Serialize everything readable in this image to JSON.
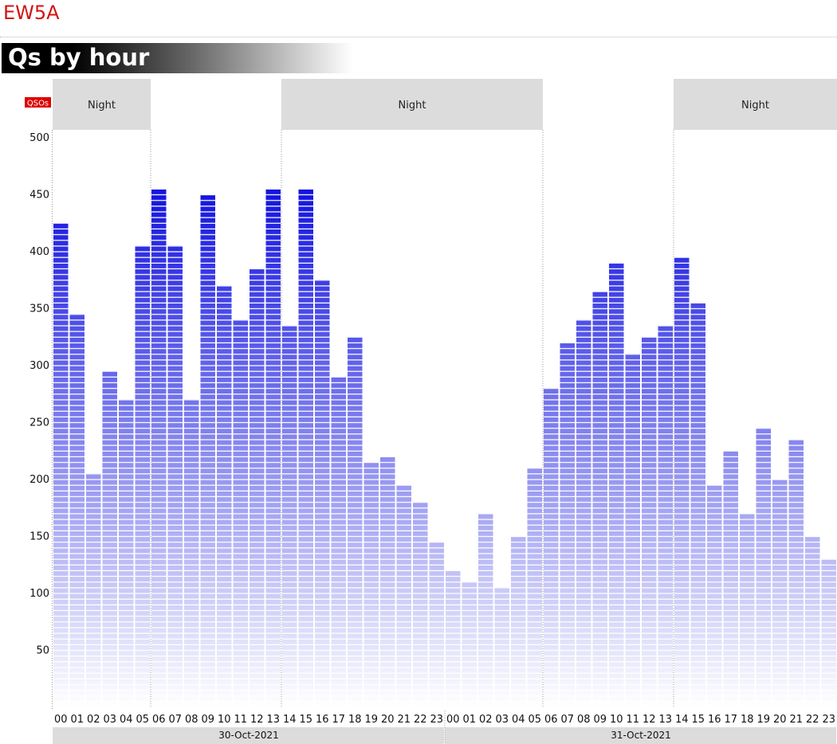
{
  "station": "EW5A",
  "section_title": "Qs by hour",
  "colors": {
    "station": "#d31313",
    "bar_top": "#1010e0",
    "bar_bottom": "#ffffff",
    "night": "#dcdcdc",
    "ylabel_bg": "#dd0000"
  },
  "chart_data": {
    "type": "bar",
    "ylabel": "QSOs",
    "ylim": [
      0,
      500
    ],
    "yticks": [
      50,
      100,
      150,
      200,
      250,
      300,
      350,
      400,
      450,
      500
    ],
    "categories": [
      "00",
      "01",
      "02",
      "03",
      "04",
      "05",
      "06",
      "07",
      "08",
      "09",
      "10",
      "11",
      "12",
      "13",
      "14",
      "15",
      "16",
      "17",
      "18",
      "19",
      "20",
      "21",
      "22",
      "23",
      "00",
      "01",
      "02",
      "03",
      "04",
      "05",
      "06",
      "07",
      "08",
      "09",
      "10",
      "11",
      "12",
      "13",
      "14",
      "15",
      "16",
      "17",
      "18",
      "19",
      "20",
      "21",
      "22",
      "23"
    ],
    "values": [
      425,
      345,
      205,
      295,
      270,
      405,
      455,
      405,
      270,
      450,
      370,
      340,
      385,
      455,
      335,
      455,
      375,
      290,
      325,
      215,
      220,
      195,
      180,
      145,
      120,
      110,
      170,
      105,
      150,
      210,
      280,
      320,
      340,
      365,
      390,
      310,
      325,
      335,
      395,
      355,
      195,
      225,
      170,
      245,
      200,
      235,
      150,
      130
    ],
    "dates": [
      {
        "label": "30-Oct-2021",
        "start": 0,
        "end": 23
      },
      {
        "label": "31-Oct-2021",
        "start": 24,
        "end": 47
      }
    ],
    "night_bands": [
      {
        "label": "Night",
        "start": 0,
        "end": 5
      },
      {
        "label": "Night",
        "start": 14,
        "end": 29
      },
      {
        "label": "Night",
        "start": 38,
        "end": 47
      }
    ]
  }
}
